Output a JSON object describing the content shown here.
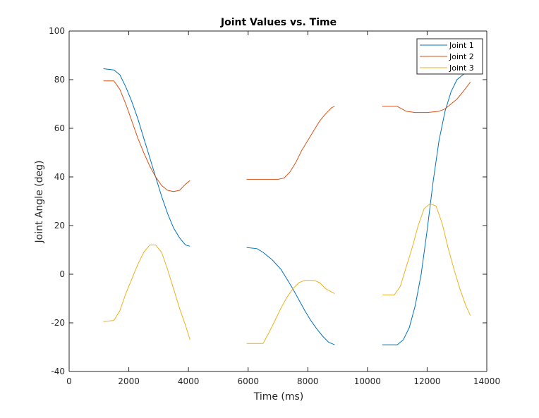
{
  "chart_data": {
    "type": "line",
    "title": "Joint Values vs. Time",
    "xlabel": "Time (ms)",
    "ylabel": "Joint Angle (deg)",
    "xlim": [
      0,
      14000
    ],
    "ylim": [
      -40,
      100
    ],
    "xticks": [
      0,
      2000,
      4000,
      6000,
      8000,
      10000,
      12000,
      14000
    ],
    "yticks": [
      -40,
      -20,
      0,
      20,
      40,
      60,
      80,
      100
    ],
    "grid": false,
    "legend_position": "top-right",
    "series": [
      {
        "name": "Joint 1",
        "color": "#0072BD",
        "segments": [
          [
            [
              1150,
              84.5
            ],
            [
              1500,
              84
            ],
            [
              1700,
              82
            ],
            [
              1900,
              77
            ],
            [
              2100,
              71
            ],
            [
              2300,
              64
            ],
            [
              2500,
              56
            ],
            [
              2700,
              48
            ],
            [
              2900,
              40
            ],
            [
              3100,
              32
            ],
            [
              3300,
              25
            ],
            [
              3500,
              19
            ],
            [
              3700,
              15
            ],
            [
              3900,
              12
            ],
            [
              4050,
              11.5
            ]
          ],
          [
            [
              5950,
              11
            ],
            [
              6300,
              10.5
            ],
            [
              6500,
              9
            ],
            [
              6800,
              6
            ],
            [
              7100,
              2
            ],
            [
              7300,
              -2
            ],
            [
              7500,
              -6
            ],
            [
              7700,
              -10.5
            ],
            [
              7900,
              -15
            ],
            [
              8100,
              -19
            ],
            [
              8300,
              -22.5
            ],
            [
              8500,
              -25.5
            ],
            [
              8700,
              -28
            ],
            [
              8900,
              -29
            ]
          ],
          [
            [
              10500,
              -29
            ],
            [
              11000,
              -29
            ],
            [
              11200,
              -27
            ],
            [
              11400,
              -22
            ],
            [
              11600,
              -13
            ],
            [
              11800,
              0
            ],
            [
              12000,
              18
            ],
            [
              12200,
              38
            ],
            [
              12400,
              55
            ],
            [
              12600,
              67
            ],
            [
              12800,
              75
            ],
            [
              13000,
              80
            ],
            [
              13200,
              82
            ],
            [
              13450,
              84
            ]
          ]
        ]
      },
      {
        "name": "Joint 2",
        "color": "#D95319",
        "segments": [
          [
            [
              1150,
              79.5
            ],
            [
              1500,
              79.5
            ],
            [
              1700,
              76
            ],
            [
              1900,
              70
            ],
            [
              2100,
              63
            ],
            [
              2300,
              56
            ],
            [
              2500,
              50
            ],
            [
              2700,
              44.5
            ],
            [
              2900,
              40
            ],
            [
              3100,
              36.5
            ],
            [
              3300,
              34.5
            ],
            [
              3500,
              34
            ],
            [
              3700,
              34.5
            ],
            [
              3900,
              37
            ],
            [
              4050,
              38.5
            ]
          ],
          [
            [
              5950,
              39
            ],
            [
              6400,
              39
            ],
            [
              7000,
              39
            ],
            [
              7200,
              39.5
            ],
            [
              7400,
              42
            ],
            [
              7600,
              46
            ],
            [
              7800,
              51
            ],
            [
              8000,
              55
            ],
            [
              8200,
              59
            ],
            [
              8400,
              63
            ],
            [
              8600,
              66
            ],
            [
              8800,
              68.5
            ],
            [
              8900,
              69
            ]
          ],
          [
            [
              10500,
              69
            ],
            [
              11000,
              69
            ],
            [
              11300,
              67
            ],
            [
              11600,
              66.5
            ],
            [
              12000,
              66.5
            ],
            [
              12400,
              67
            ],
            [
              12600,
              68
            ],
            [
              12800,
              70
            ],
            [
              13000,
              72
            ],
            [
              13200,
              75
            ],
            [
              13450,
              79
            ]
          ]
        ]
      },
      {
        "name": "Joint 3",
        "color": "#EDB120",
        "segments": [
          [
            [
              1150,
              -19.5
            ],
            [
              1500,
              -19
            ],
            [
              1700,
              -15
            ],
            [
              1900,
              -8
            ],
            [
              2100,
              -2
            ],
            [
              2300,
              4
            ],
            [
              2500,
              9
            ],
            [
              2700,
              12
            ],
            [
              2900,
              12
            ],
            [
              3100,
              9
            ],
            [
              3300,
              2
            ],
            [
              3500,
              -6
            ],
            [
              3700,
              -14
            ],
            [
              3900,
              -21
            ],
            [
              4050,
              -27
            ]
          ],
          [
            [
              5950,
              -28.5
            ],
            [
              6500,
              -28.5
            ],
            [
              6700,
              -24
            ],
            [
              6900,
              -19
            ],
            [
              7100,
              -14
            ],
            [
              7300,
              -9.5
            ],
            [
              7500,
              -6
            ],
            [
              7700,
              -3.5
            ],
            [
              7900,
              -2.5
            ],
            [
              8200,
              -2.5
            ],
            [
              8400,
              -3.5
            ],
            [
              8600,
              -6
            ],
            [
              8900,
              -8
            ]
          ],
          [
            [
              10500,
              -8.5
            ],
            [
              10900,
              -8.5
            ],
            [
              11100,
              -5
            ],
            [
              11300,
              3
            ],
            [
              11500,
              11
            ],
            [
              11700,
              20
            ],
            [
              11900,
              27
            ],
            [
              12100,
              29
            ],
            [
              12300,
              28
            ],
            [
              12500,
              21
            ],
            [
              12700,
              11
            ],
            [
              12900,
              2
            ],
            [
              13100,
              -6
            ],
            [
              13300,
              -13
            ],
            [
              13450,
              -17
            ]
          ]
        ]
      }
    ]
  }
}
